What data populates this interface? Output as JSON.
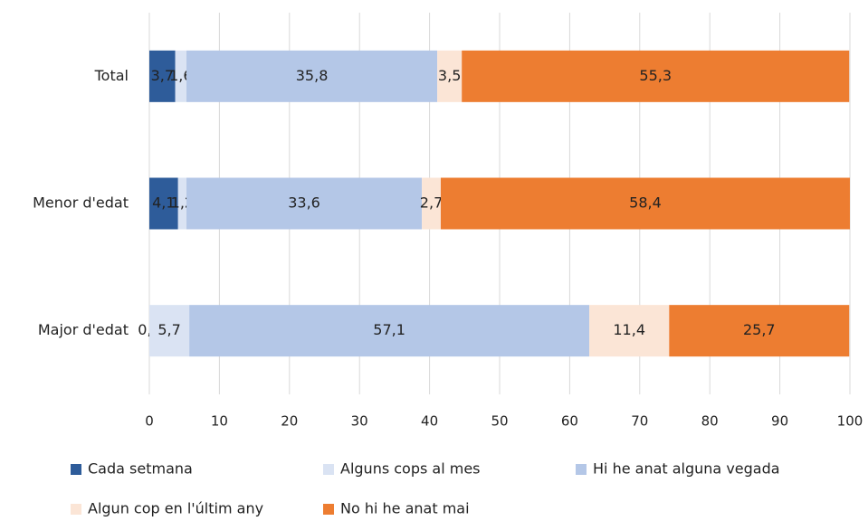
{
  "chart_data": {
    "type": "stacked-bar-horizontal",
    "categories": [
      "Total",
      "Menor d'edat",
      "Major d'edat"
    ],
    "series": [
      {
        "name": "Cada setmana",
        "color": "#2e5c9a",
        "values": [
          3.7,
          4.1,
          0
        ],
        "value_labels": [
          "3,7",
          "4,1",
          "0,0"
        ]
      },
      {
        "name": "Alguns cops al mes",
        "color": "#dae3f3",
        "values": [
          1.6,
          1.2,
          5.7
        ],
        "value_labels": [
          "1,6",
          "1,2",
          "5,7"
        ]
      },
      {
        "name": "Hi he anat alguna vegada",
        "color": "#b4c7e7",
        "values": [
          35.8,
          33.6,
          57.1
        ],
        "value_labels": [
          "35,8",
          "33,6",
          "57,1"
        ]
      },
      {
        "name": "Algun cop en l'últim any",
        "color": "#fbe5d6",
        "values": [
          3.5,
          2.7,
          11.4
        ],
        "value_labels": [
          "3,5",
          "2,7",
          "11,4"
        ]
      },
      {
        "name": "No hi he anat mai",
        "color": "#ed7d31",
        "values": [
          55.3,
          58.4,
          25.7
        ],
        "value_labels": [
          "55,3",
          "58,4",
          "25,7"
        ]
      }
    ],
    "xlim": [
      0,
      100
    ],
    "xticks": [
      0,
      10,
      20,
      30,
      40,
      50,
      60,
      70,
      80,
      90,
      100
    ],
    "grid": true,
    "legend": "bottom"
  }
}
